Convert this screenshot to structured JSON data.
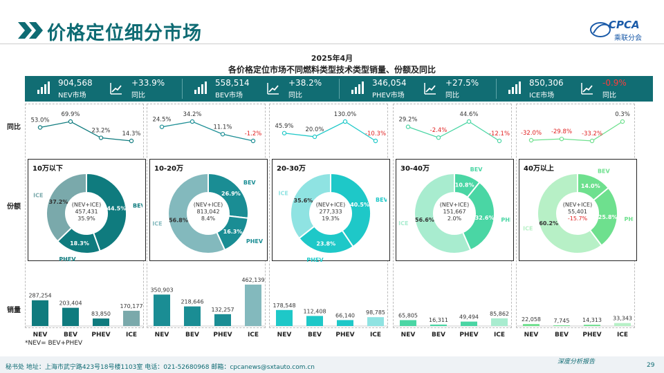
{
  "header": {
    "title": "价格定位细分市场",
    "logo_text": "CPCA",
    "logo_sub": "乘联分会"
  },
  "chart_title": {
    "line1": "2025年4月",
    "line2": "各价格定位市场不同燃料类型技术类型销量、份额及同比"
  },
  "kpis": [
    {
      "value": "904,568",
      "label": "NEV市场",
      "yoy": "+33.9%",
      "yoy_label": "同比",
      "yoy_color": "#ffffff"
    },
    {
      "value": "558,514",
      "label": "BEV市场",
      "yoy": "+38.2%",
      "yoy_label": "同比",
      "yoy_color": "#ffffff"
    },
    {
      "value": "346,054",
      "label": "PHEV市场",
      "yoy": "+27.5%",
      "yoy_label": "同比",
      "yoy_color": "#ffffff"
    },
    {
      "value": "850,306",
      "label": "ICE市场",
      "yoy": "-0.9%",
      "yoy_label": "同比",
      "yoy_color": "#ff3b3b"
    }
  ],
  "row_labels": {
    "yoy": "同比",
    "share": "份额",
    "sales": "销量"
  },
  "footnote": "*NEV= BEV+PHEV",
  "footer": {
    "address": "秘书处  地址：上海市武宁路423号18号楼1103室  电话：021-52680968   邮箱：cpcanews@sxtauto.com.cn",
    "right": "深度分析报告",
    "page": "29"
  },
  "chart_data": [
    {
      "type": "mixed",
      "segment": "10万以下",
      "color": "#0f7b7e",
      "light": "#7aa9ab",
      "yoy_line": {
        "categories": [
          "NEV",
          "BEV",
          "PHEV",
          "ICE"
        ],
        "values": [
          53.0,
          69.9,
          23.2,
          14.3
        ],
        "labels": [
          "53.0%",
          "69.9%",
          "23.2%",
          "14.3%"
        ]
      },
      "donut": {
        "center": [
          "(NEV+ICE)",
          "457,431",
          "35.9%"
        ],
        "slices": [
          {
            "name": "BEV",
            "value": 44.5,
            "label": "44.5%"
          },
          {
            "name": "PHEV",
            "value": 18.3,
            "label": "18.3%"
          },
          {
            "name": "ICE",
            "value": 37.2,
            "label": "37.2%"
          }
        ]
      },
      "bars": {
        "categories": [
          "NEV",
          "BEV",
          "PHEV",
          "ICE"
        ],
        "values": [
          287254,
          203404,
          83850,
          170177
        ],
        "labels": [
          "287,254",
          "203,404",
          "83,850",
          "170,177"
        ]
      }
    },
    {
      "type": "mixed",
      "segment": "10-20万",
      "color": "#1a8d94",
      "light": "#83b9bd",
      "yoy_line": {
        "categories": [
          "NEV",
          "BEV",
          "PHEV",
          "ICE"
        ],
        "values": [
          24.5,
          34.2,
          11.1,
          -1.2
        ],
        "labels": [
          "24.5%",
          "34.2%",
          "11.1%",
          "-1.2%"
        ]
      },
      "donut": {
        "center": [
          "(NEV+ICE)",
          "813,042",
          "8.4%"
        ],
        "slices": [
          {
            "name": "BEV",
            "value": 26.9,
            "label": "26.9%"
          },
          {
            "name": "PHEV",
            "value": 16.3,
            "label": "16.3%"
          },
          {
            "name": "ICE",
            "value": 56.8,
            "label": "56.8%"
          }
        ]
      },
      "bars": {
        "categories": [
          "NEV",
          "BEV",
          "PHEV",
          "ICE"
        ],
        "values": [
          350903,
          218646,
          132257,
          462139
        ],
        "labels": [
          "350,903",
          "218,646",
          "132,257",
          "462,139"
        ]
      }
    },
    {
      "type": "mixed",
      "segment": "20-30万",
      "color": "#1ec8c8",
      "light": "#8fe3e2",
      "yoy_line": {
        "categories": [
          "NEV",
          "BEV",
          "PHEV",
          "ICE"
        ],
        "values": [
          45.9,
          20.0,
          130.0,
          -10.3
        ],
        "labels": [
          "45.9%",
          "20.0%",
          "130.0%",
          "-10.3%"
        ]
      },
      "donut": {
        "center": [
          "(NEV+ICE)",
          "277,333",
          "19.3%"
        ],
        "slices": [
          {
            "name": "BEV",
            "value": 40.5,
            "label": "40.5%"
          },
          {
            "name": "PHEV",
            "value": 23.8,
            "label": "23.8%"
          },
          {
            "name": "ICE",
            "value": 35.6,
            "label": "35.6%"
          }
        ]
      },
      "bars": {
        "categories": [
          "NEV",
          "BEV",
          "PHEV",
          "ICE"
        ],
        "values": [
          178548,
          112408,
          66140,
          98785
        ],
        "labels": [
          "178,548",
          "112,408",
          "66,140",
          "98,785"
        ]
      }
    },
    {
      "type": "mixed",
      "segment": "30-40万",
      "color": "#4ad6a4",
      "light": "#a8eccf",
      "yoy_line": {
        "categories": [
          "NEV",
          "BEV",
          "PHEV",
          "ICE"
        ],
        "values": [
          29.2,
          -2.4,
          44.6,
          -12.1
        ],
        "labels": [
          "29.2%",
          "-2.4%",
          "44.6%",
          "-12.1%"
        ]
      },
      "donut": {
        "center": [
          "(NEV+ICE)",
          "151,667",
          "2.0%"
        ],
        "slices": [
          {
            "name": "BEV",
            "value": 10.8,
            "label": "10.8%"
          },
          {
            "name": "PHEV",
            "value": 32.6,
            "label": "32.6%"
          },
          {
            "name": "ICE",
            "value": 56.6,
            "label": "56.6%"
          }
        ]
      },
      "bars": {
        "categories": [
          "NEV",
          "BEV",
          "PHEV",
          "ICE"
        ],
        "values": [
          65805,
          16311,
          49494,
          85862
        ],
        "labels": [
          "65,805",
          "16,311",
          "49,494",
          "85,862"
        ]
      }
    },
    {
      "type": "mixed",
      "segment": "40万以上",
      "color": "#6ee08e",
      "light": "#b7f0c6",
      "yoy_line": {
        "categories": [
          "NEV",
          "BEV",
          "PHEV",
          "ICE"
        ],
        "values": [
          -32.0,
          -29.8,
          -33.2,
          0.3
        ],
        "labels": [
          "-32.0%",
          "-29.8%",
          "-33.2%",
          "0.3%"
        ]
      },
      "donut": {
        "center": [
          "(NEV+ICE)",
          "55,401",
          "-15.7%"
        ],
        "slices": [
          {
            "name": "BEV",
            "value": 14.0,
            "label": "14.0%"
          },
          {
            "name": "PHEV",
            "value": 25.8,
            "label": "25.8%"
          },
          {
            "name": "ICE",
            "value": 60.2,
            "label": "60.2%"
          }
        ]
      },
      "bars": {
        "categories": [
          "NEV",
          "BEV",
          "PHEV",
          "ICE"
        ],
        "values": [
          22058,
          7745,
          14313,
          33343
        ],
        "labels": [
          "22,058",
          "7,745",
          "14,313",
          "33,343"
        ]
      }
    }
  ]
}
